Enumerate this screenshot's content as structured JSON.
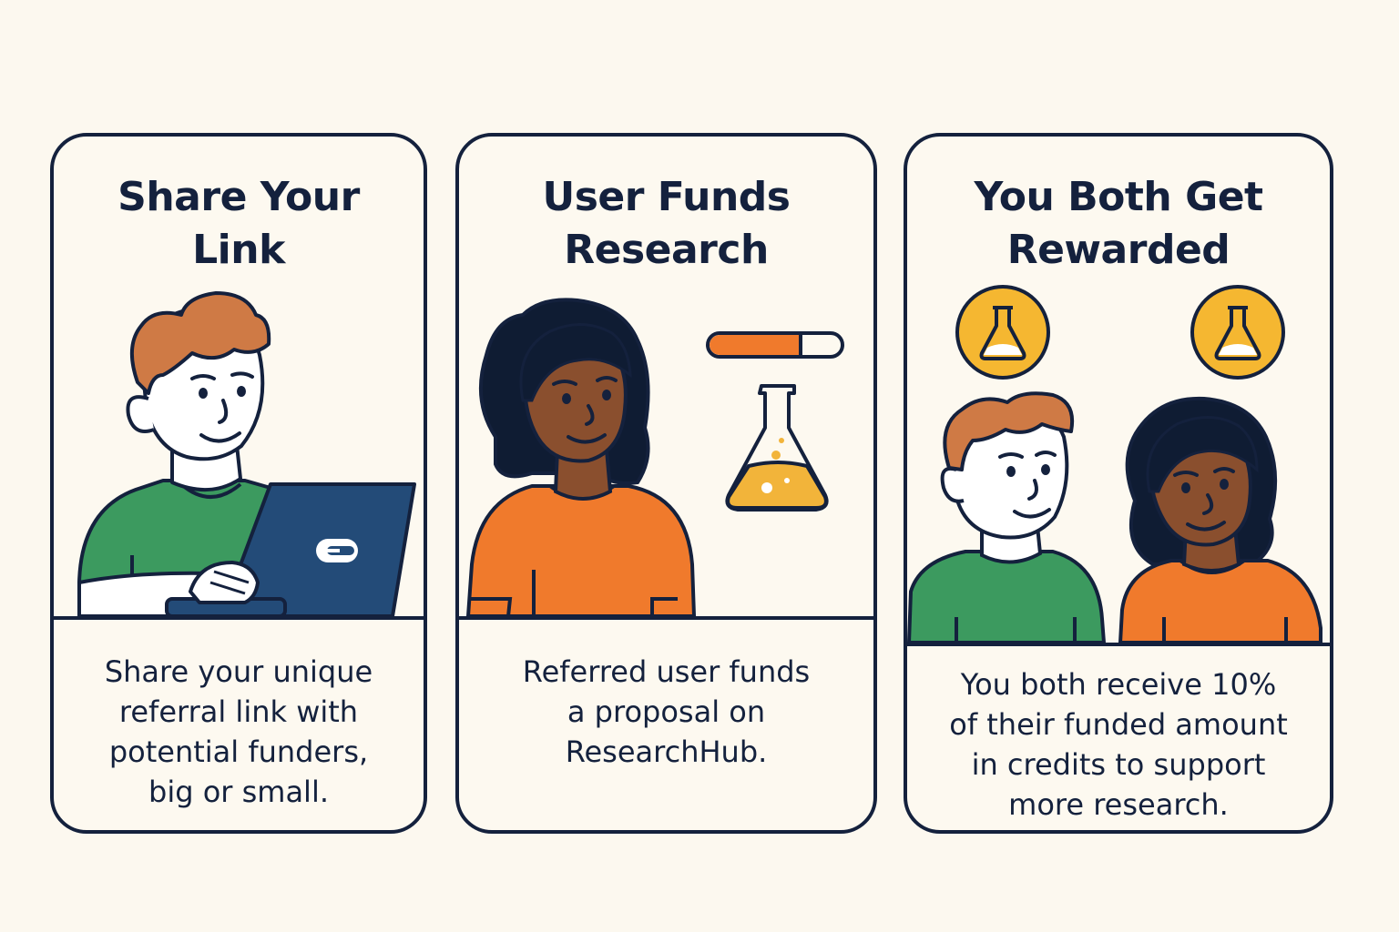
{
  "cards": [
    {
      "title_lines": [
        "Share Your",
        "Link"
      ],
      "description_lines": [
        "Share your unique",
        "referral link with",
        "potential funders,",
        "big or small."
      ]
    },
    {
      "title_lines": [
        "User Funds",
        "Research"
      ],
      "description_lines": [
        "Referred user funds",
        "a proposal on",
        "ResearchHub."
      ],
      "funding_progress": 0.68
    },
    {
      "title_lines": [
        "You Both Get",
        "Rewarded"
      ],
      "description_lines": [
        "You both receive 10%",
        "of their funded amount",
        "in credits to support",
        "more research."
      ]
    }
  ],
  "icons": {
    "laptop_logo": "link-icon",
    "flask": "flask-icon",
    "reward_coin": "flask-coin-icon"
  },
  "colors": {
    "background": "#fcf8ef",
    "outline": "#14213d",
    "green_shirt": "#3c9a5f",
    "orange_shirt": "#f07a2c",
    "hair_ginger": "#cf7a45",
    "hair_dark": "#0f1c33",
    "skin_light": "#ffffff",
    "skin_dark": "#8a4f2e",
    "laptop": "#234b78",
    "gold": "#f5b731",
    "flask_liquid": "#f2b43a",
    "progress": "#f07a2c"
  }
}
